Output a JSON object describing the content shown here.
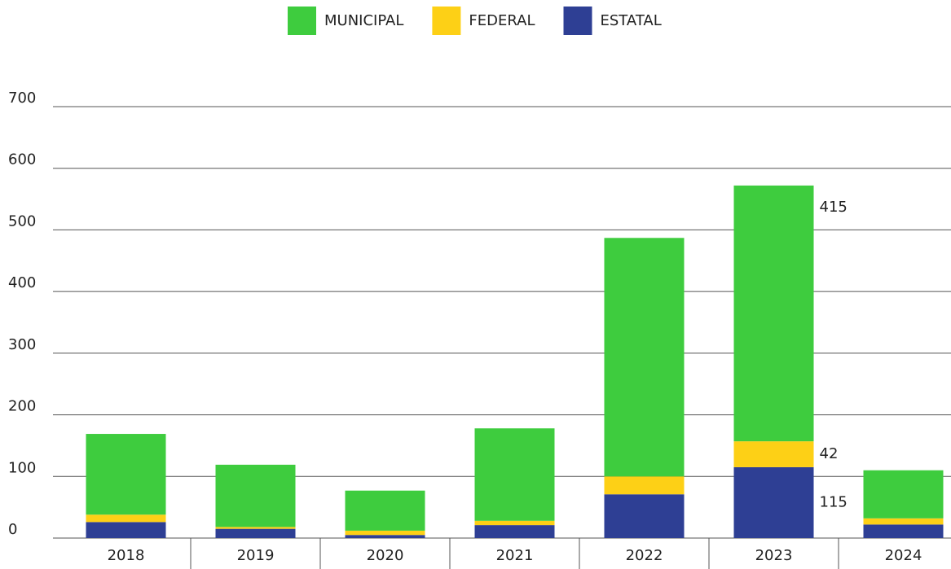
{
  "chart_data": {
    "type": "stacked_bar",
    "categories": [
      "2018",
      "2019",
      "2020",
      "2021",
      "2022",
      "2023",
      "2024"
    ],
    "series": [
      {
        "name": "ESTATAL",
        "color": "#2e3f94",
        "values": [
          26,
          15,
          5,
          21,
          71,
          115,
          22
        ],
        "value_labels": [
          null,
          null,
          null,
          null,
          null,
          "115",
          null
        ]
      },
      {
        "name": "FEDERAL",
        "color": "#fdd016",
        "values": [
          12,
          3,
          7,
          7,
          29,
          42,
          10
        ],
        "value_labels": [
          null,
          null,
          null,
          null,
          null,
          "42",
          null
        ]
      },
      {
        "name": "MUNICIPAL",
        "color": "#3ecc3e",
        "values": [
          131,
          101,
          65,
          150,
          387,
          415,
          78
        ],
        "value_labels": [
          null,
          null,
          null,
          null,
          null,
          "415",
          null
        ]
      }
    ],
    "ylim": [
      0,
      700
    ],
    "yticks": [
      0,
      100,
      200,
      300,
      400,
      500,
      600,
      700
    ],
    "grid": true,
    "legend": "top"
  }
}
